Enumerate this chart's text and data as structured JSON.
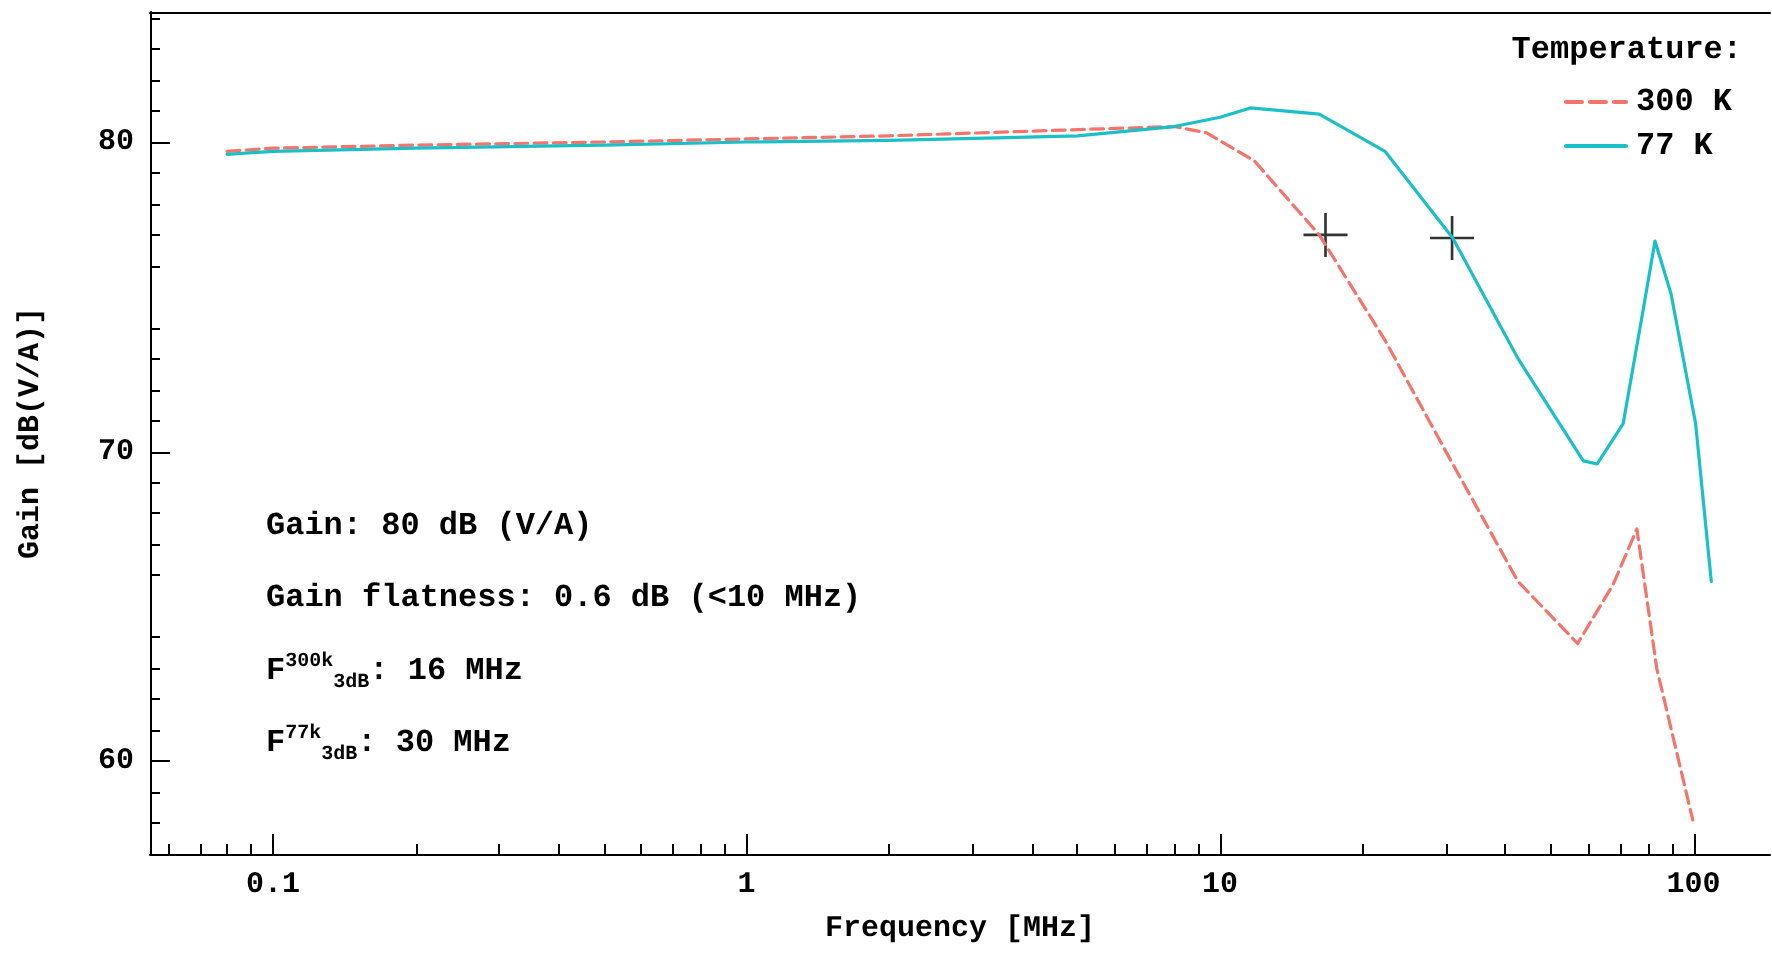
{
  "chart_data": {
    "type": "line",
    "xlabel": "Frequency [MHz]",
    "ylabel": "Gain [dB(V/A)]",
    "legend_title": "Temperature:",
    "legend": "top right",
    "grid": false,
    "log": "x",
    "xlim": [
      0.055,
      145
    ],
    "xticks": [
      0.1,
      1,
      10,
      100
    ],
    "ylim": [
      57,
      84.2
    ],
    "yticks": [
      60,
      70,
      80
    ],
    "series": [
      {
        "name": "300 K",
        "color": "#f4736b",
        "line_style": "dashed",
        "marker": "none",
        "x": [
          0.08,
          0.1,
          0.2,
          0.5,
          1,
          2,
          5,
          8,
          9.35,
          11.8,
          16.2,
          22.3,
          31.0,
          42.6,
          56.9,
          67.6,
          75.9,
          83.6,
          99.6
        ],
        "values": [
          79.7,
          79.8,
          79.9,
          80.0,
          80.1,
          80.2,
          80.4,
          80.5,
          80.3,
          79.4,
          77.0,
          73.6,
          69.6,
          65.8,
          63.8,
          65.7,
          67.5,
          63.0,
          58.1
        ]
      },
      {
        "name": "77 K",
        "color": "#1bbfc6",
        "line_style": "solid",
        "marker": "none",
        "x": [
          0.08,
          0.1,
          0.2,
          0.5,
          1,
          2,
          5,
          8,
          10,
          11.6,
          16.2,
          22.3,
          31.0,
          42.6,
          58.5,
          62.6,
          71.0,
          78.1,
          82.9,
          89.6,
          101,
          109
        ],
        "values": [
          79.6,
          79.7,
          79.8,
          79.9,
          80.0,
          80.05,
          80.2,
          80.5,
          80.8,
          81.1,
          80.9,
          79.7,
          76.9,
          73.0,
          69.7,
          69.6,
          70.9,
          74.5,
          76.8,
          75.1,
          70.9,
          65.8
        ]
      },
      {
        "type": "scatter",
        "color": "#000000",
        "marker": "cross",
        "x": [
          16.7,
          30.9
        ],
        "values": [
          77.0,
          76.9
        ]
      }
    ],
    "annotations": [
      "Gain: 80 dB (V/A)",
      "Gain flatness: 0.6 dB (<10 MHz)",
      "F$^{300k}$$_{3dB}$: 16 MHz",
      "F$^{77k}$$_{3dB}$: 30 MHz"
    ]
  }
}
